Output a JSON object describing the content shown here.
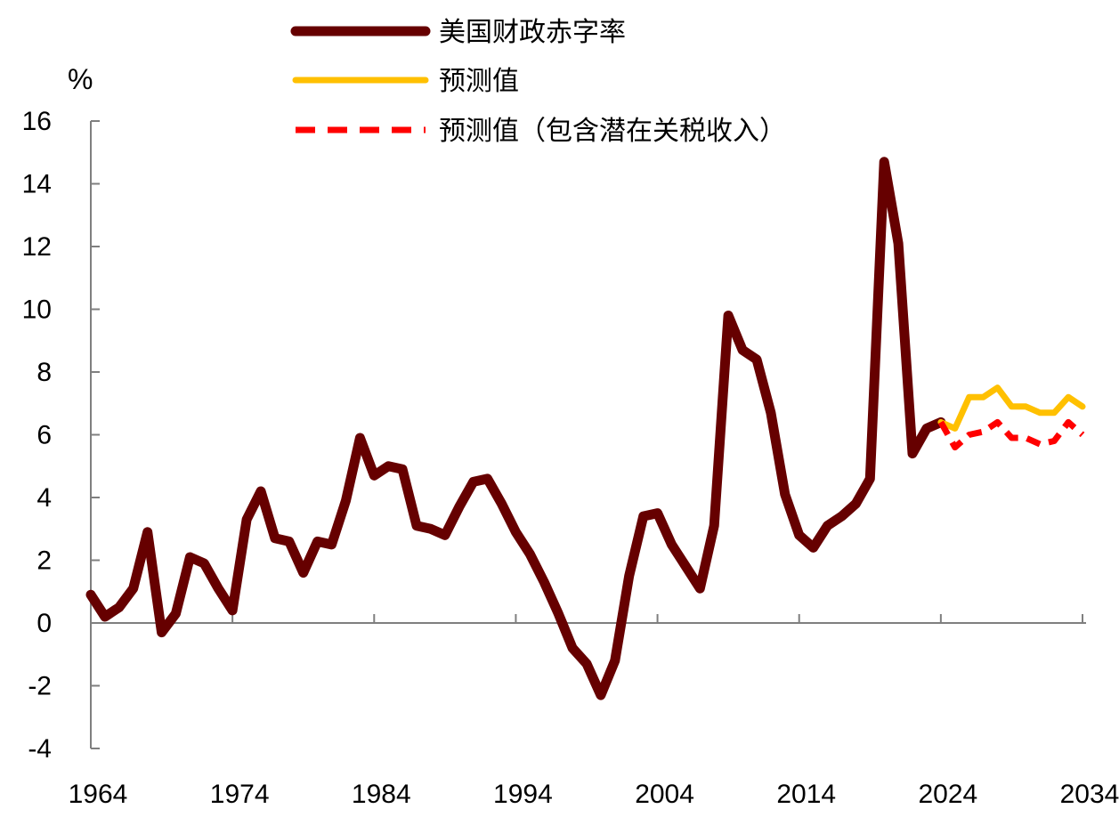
{
  "chart_data": {
    "type": "line",
    "title": "",
    "xlabel": "",
    "ylabel": "%",
    "xlim": [
      1964,
      2034
    ],
    "ylim": [
      -4,
      16
    ],
    "yticks": [
      -4,
      -2,
      0,
      2,
      4,
      6,
      8,
      10,
      12,
      14,
      16
    ],
    "xticks": [
      1964,
      1974,
      1984,
      1994,
      2004,
      2014,
      2024,
      2034
    ],
    "grid": false,
    "legend_position": "top-center",
    "series": [
      {
        "name": "美国财政赤字率",
        "color": "#660000",
        "style": "solid",
        "x": [
          1964,
          1965,
          1966,
          1967,
          1968,
          1969,
          1970,
          1971,
          1972,
          1973,
          1974,
          1975,
          1976,
          1977,
          1978,
          1979,
          1980,
          1981,
          1982,
          1983,
          1984,
          1985,
          1986,
          1987,
          1988,
          1989,
          1990,
          1991,
          1992,
          1993,
          1994,
          1995,
          1996,
          1997,
          1998,
          1999,
          2000,
          2001,
          2002,
          2003,
          2004,
          2005,
          2006,
          2007,
          2008,
          2009,
          2010,
          2011,
          2012,
          2013,
          2014,
          2015,
          2016,
          2017,
          2018,
          2019,
          2020,
          2021,
          2022,
          2023,
          2024
        ],
        "values": [
          0.9,
          0.2,
          0.5,
          1.1,
          2.9,
          -0.3,
          0.3,
          2.1,
          1.9,
          1.1,
          0.4,
          3.3,
          4.2,
          2.7,
          2.6,
          1.6,
          2.6,
          2.5,
          3.9,
          5.9,
          4.7,
          5.0,
          4.9,
          3.1,
          3.0,
          2.8,
          3.7,
          4.5,
          4.6,
          3.8,
          2.9,
          2.2,
          1.3,
          0.3,
          -0.8,
          -1.3,
          -2.3,
          -1.2,
          1.5,
          3.4,
          3.5,
          2.5,
          1.8,
          1.1,
          3.1,
          9.8,
          8.7,
          8.4,
          6.7,
          4.1,
          2.8,
          2.4,
          3.1,
          3.4,
          3.8,
          4.6,
          14.7,
          12.1,
          5.4,
          6.2,
          6.4
        ]
      },
      {
        "name": "预测值",
        "color": "#FFC000",
        "style": "solid",
        "x": [
          2024,
          2025,
          2026,
          2027,
          2028,
          2029,
          2030,
          2031,
          2032,
          2033,
          2034
        ],
        "values": [
          6.4,
          6.2,
          7.2,
          7.2,
          7.5,
          6.9,
          6.9,
          6.7,
          6.7,
          7.2,
          6.9
        ]
      },
      {
        "name": "预测值（包含潜在关税收入）",
        "color": "#FF0000",
        "style": "dashed",
        "x": [
          2024,
          2025,
          2026,
          2027,
          2028,
          2029,
          2030,
          2031,
          2032,
          2033,
          2034
        ],
        "values": [
          6.4,
          5.6,
          6.0,
          6.1,
          6.4,
          5.9,
          5.9,
          5.7,
          5.8,
          6.4,
          6.0
        ]
      }
    ]
  }
}
